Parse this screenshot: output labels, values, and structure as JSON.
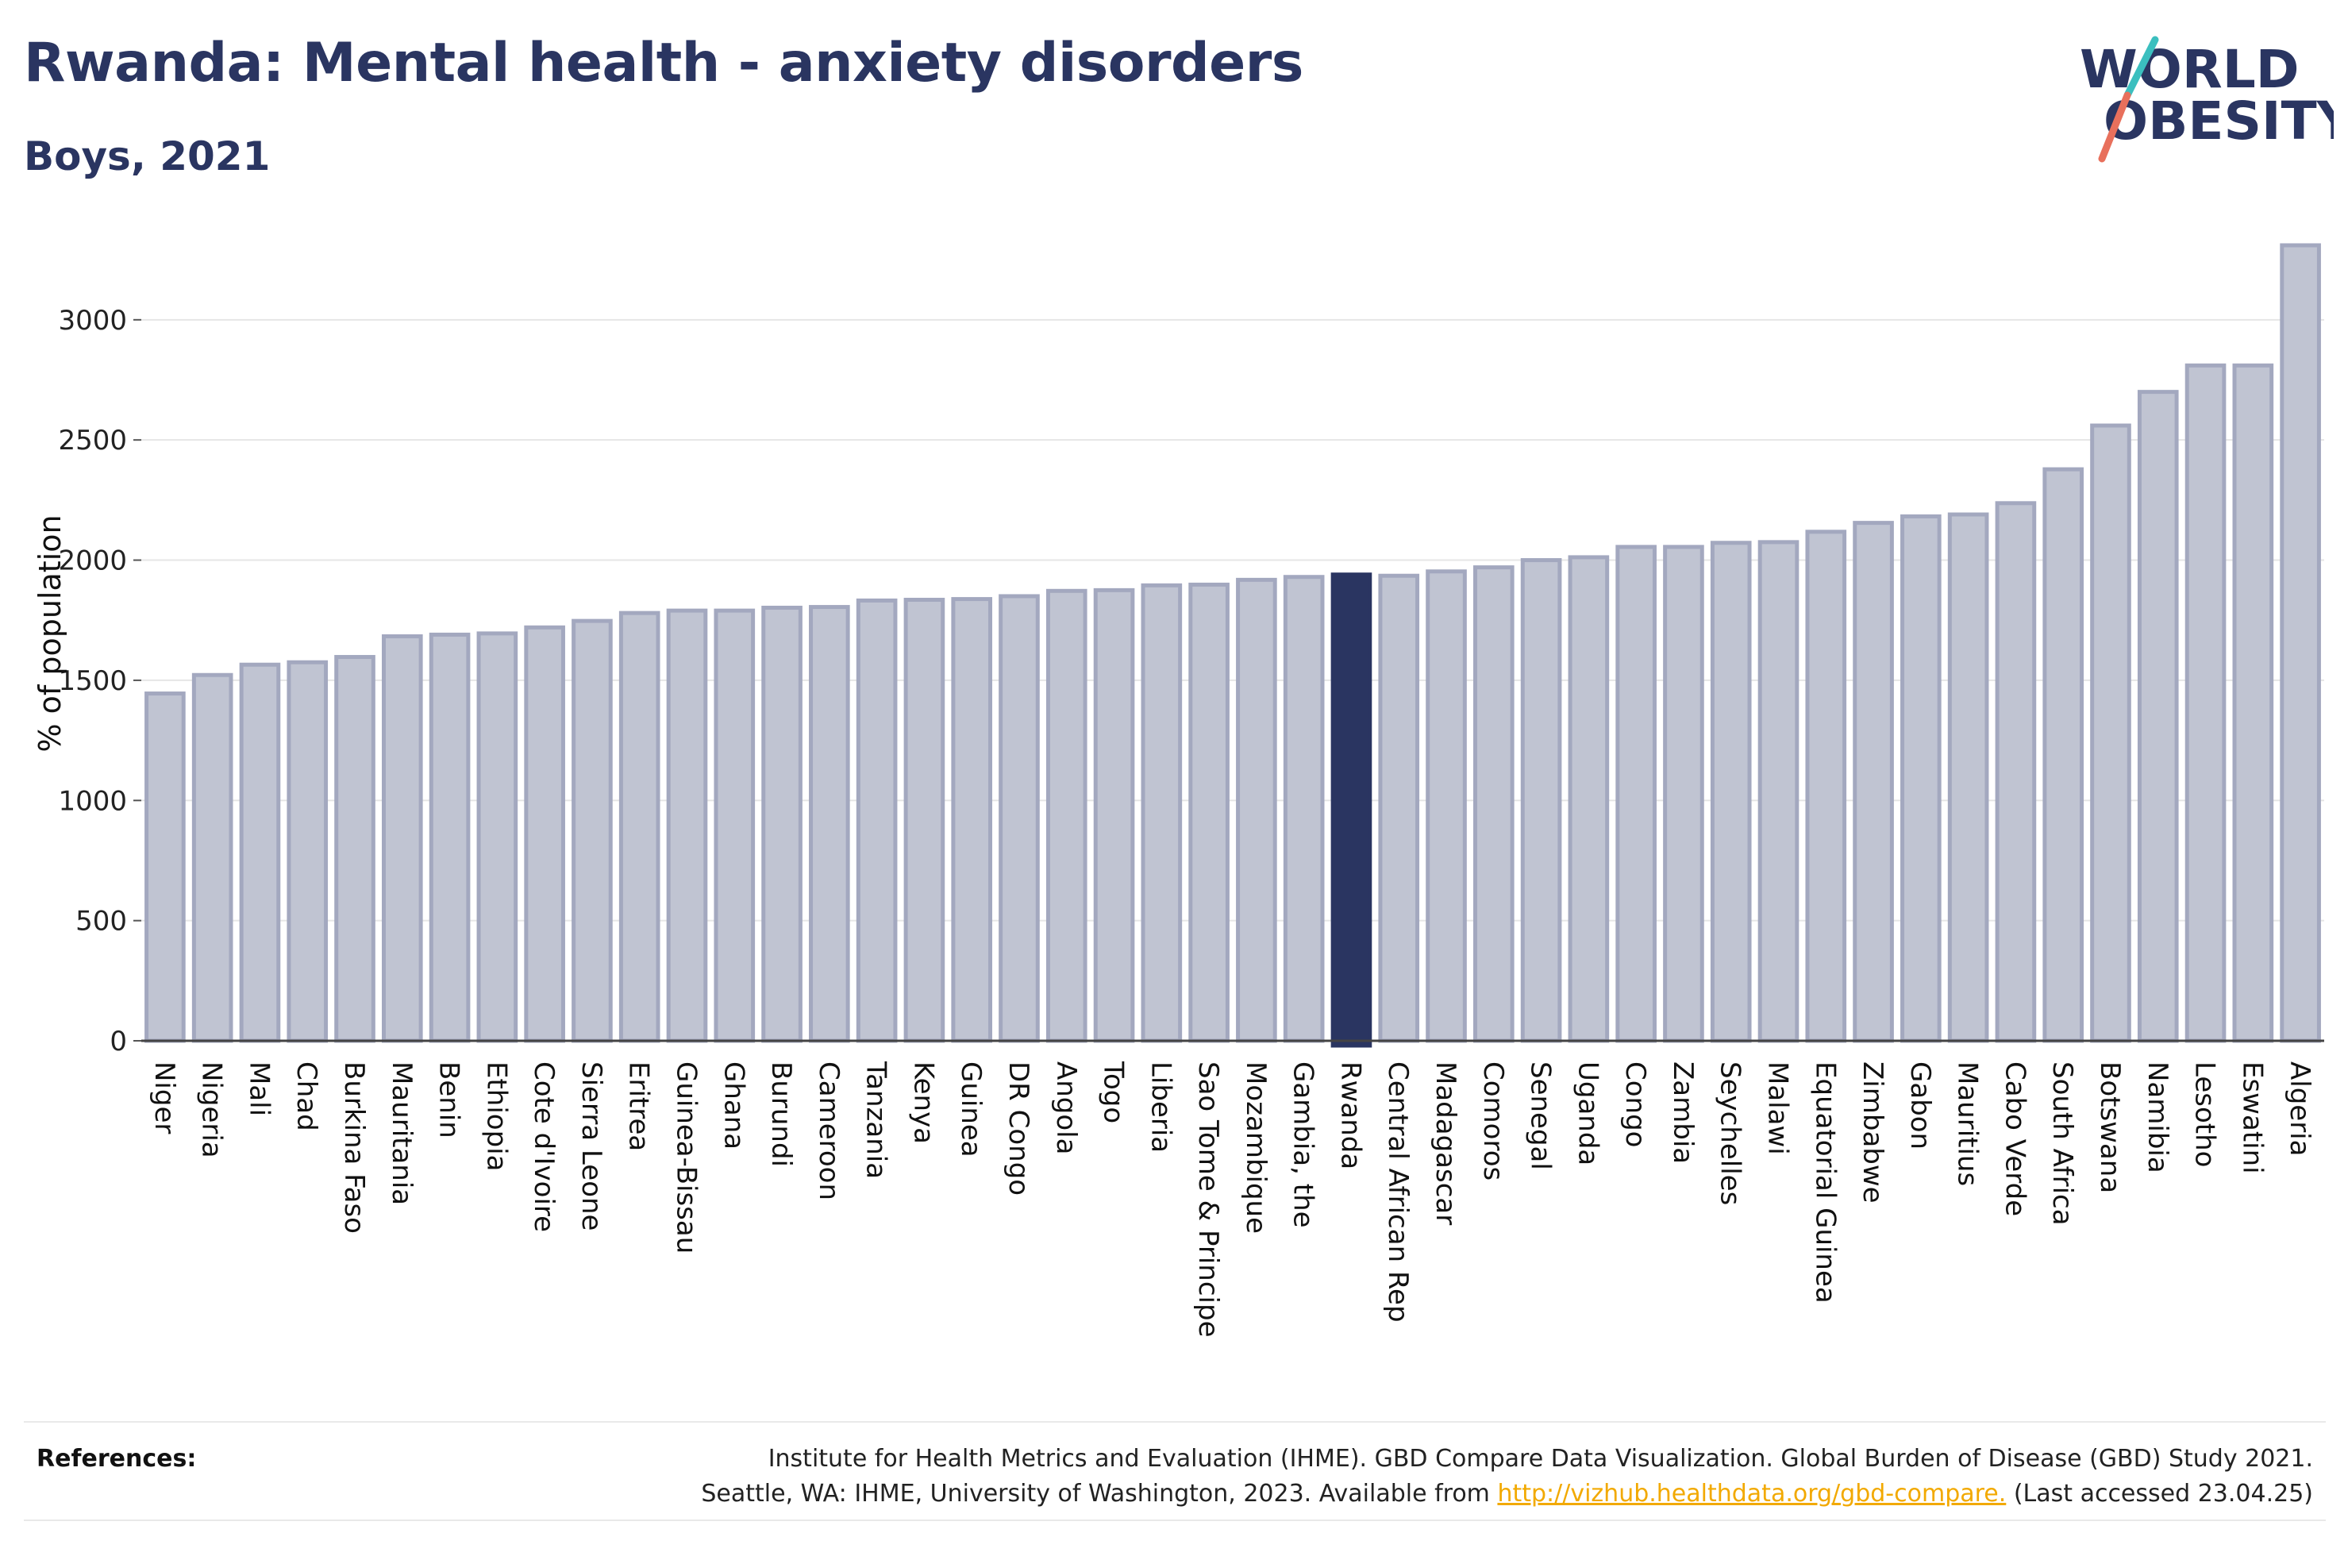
{
  "header": {
    "title": "Rwanda: Mental health - anxiety disorders",
    "subtitle": "Boys, 2021"
  },
  "logo": {
    "line1": "WORLD",
    "line2": "OBESITY",
    "icon": "world-obesity-slash-logo"
  },
  "references": {
    "label": "References:",
    "line1": "Institute for Health Metrics and Evaluation (IHME). GBD Compare Data Visualization. Global Burden of Disease (GBD) Study 2021.",
    "line2_before": "Seattle, WA: IHME, University of Washington, 2023. Available from ",
    "link": "http://vizhub.healthdata.org/gbd-compare.",
    "line2_after": " (Last accessed 23.04.25)"
  },
  "colors": {
    "bar": "#c0c4d2",
    "bar_border": "#a3a8bf",
    "highlight": "#2a3561",
    "title": "#2a3561",
    "link": "#f2a900",
    "logo_teal": "#3bbfbf",
    "logo_coral": "#e8705c"
  },
  "chart_data": {
    "type": "bar",
    "ylabel": "% of population",
    "xlabel": "",
    "ylim": [
      0,
      3300
    ],
    "yticks": [
      0,
      500,
      1000,
      1500,
      2000,
      2500,
      3000
    ],
    "grid": true,
    "highlight": "Rwanda",
    "categories": [
      "Niger",
      "Nigeria",
      "Mali",
      "Chad",
      "Burkina Faso",
      "Mauritania",
      "Benin",
      "Ethiopia",
      "Cote d'Ivoire",
      "Sierra Leone",
      "Eritrea",
      "Guinea-Bissau",
      "Ghana",
      "Burundi",
      "Cameroon",
      "Tanzania",
      "Kenya",
      "Guinea",
      "DR Congo",
      "Angola",
      "Togo",
      "Liberia",
      "Sao Tome & Principe",
      "Mozambique",
      "Gambia, the",
      "Rwanda",
      "Central African Rep",
      "Madagascar",
      "Comoros",
      "Senegal",
      "Uganda",
      "Congo",
      "Zambia",
      "Seychelles",
      "Malawi",
      "Equatorial Guinea",
      "Zimbabwe",
      "Gabon",
      "Mauritius",
      "Cabo Verde",
      "South Africa",
      "Botswana",
      "Namibia",
      "Lesotho",
      "Eswatini",
      "Algeria"
    ],
    "values": [
      1445,
      1522,
      1565,
      1575,
      1597,
      1683,
      1690,
      1695,
      1720,
      1747,
      1780,
      1790,
      1790,
      1802,
      1805,
      1832,
      1835,
      1838,
      1850,
      1872,
      1875,
      1895,
      1898,
      1918,
      1930,
      1940,
      1935,
      1953,
      1970,
      2000,
      2012,
      2055,
      2055,
      2072,
      2075,
      2118,
      2155,
      2182,
      2190,
      2237,
      2378,
      2560,
      2700,
      2810,
      2810,
      3310
    ]
  }
}
